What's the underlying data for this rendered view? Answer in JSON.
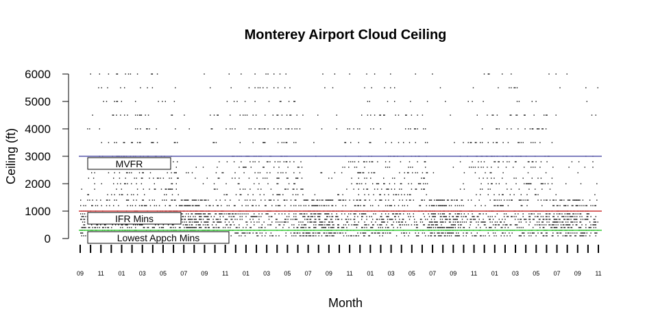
{
  "chart_data": {
    "type": "scatter",
    "title": "Monterey Airport Cloud Ceiling",
    "xlabel": "Month",
    "ylabel": "Ceiling (ft)",
    "ylim": [
      0,
      6000
    ],
    "yticks": [
      0,
      1000,
      2000,
      3000,
      4000,
      5000,
      6000
    ],
    "x_start_month": "09",
    "x_end_month": "11",
    "xtick_labels": [
      "09",
      "11",
      "01",
      "03",
      "05",
      "07",
      "09",
      "11",
      "01",
      "03",
      "05",
      "07",
      "09",
      "11",
      "01",
      "03",
      "05",
      "07",
      "09",
      "11",
      "01",
      "03",
      "05",
      "07",
      "09",
      "11"
    ],
    "grid": false,
    "reference_lines": [
      {
        "name": "MVFR",
        "value": 3000,
        "color": "#5555aa"
      },
      {
        "name": "IFR Mins",
        "value": 1000,
        "color": "#cc3333"
      },
      {
        "name": "Lowest Appch Mins",
        "value": 300,
        "color": "#33cc33"
      }
    ],
    "series": [
      {
        "color": "#000000"
      }
    ]
  }
}
